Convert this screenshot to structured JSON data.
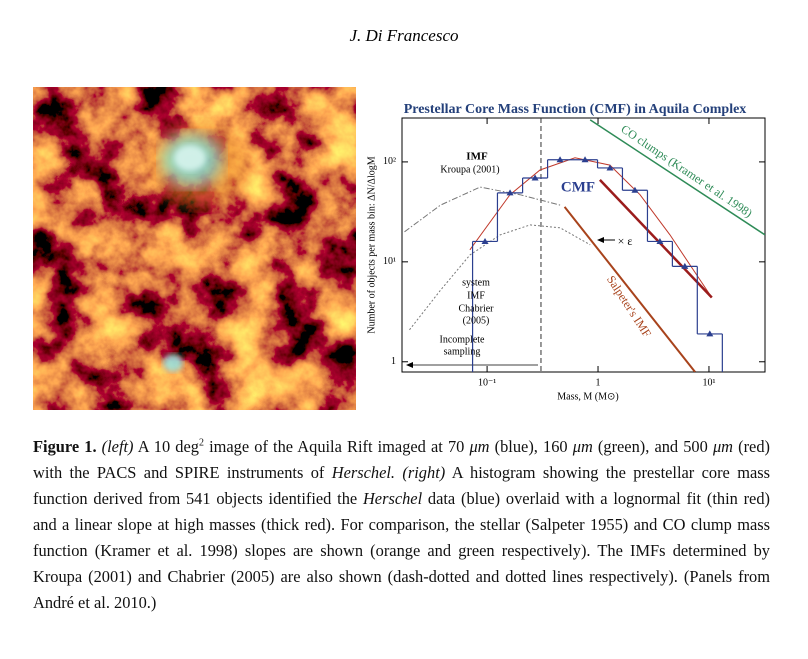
{
  "header": {
    "author": "J. Di Francesco"
  },
  "chart_data": {
    "type": "histogram",
    "title": "Prestellar Core Mass Function (CMF) in Aquila Complex",
    "x_label": "Mass, M (M⊙)",
    "y_label": "Number of objects per mass bin: ΔN/ΔlogM",
    "log_x": true,
    "log_y": true,
    "xlim": [
      0.0171,
      32
    ],
    "ylim": [
      0.79,
      275
    ],
    "xticks": [
      {
        "value": 0.1,
        "label": "10⁻¹"
      },
      1,
      {
        "value": 10,
        "label": "10¹"
      }
    ],
    "yticks": [
      1,
      {
        "value": 10,
        "label": "10¹"
      },
      {
        "value": 100,
        "label": "10²"
      }
    ],
    "bins": [
      0.074,
      0.124,
      0.209,
      0.351,
      0.589,
      0.99,
      1.66,
      2.79,
      4.68,
      7.85,
      13.2
    ],
    "values": [
      16,
      49,
      69,
      105,
      105,
      87,
      52,
      16,
      9,
      1.9
    ],
    "color": "#2b3f8f",
    "lines": [
      {
        "x": [
          0.07,
          0.161,
          0.3,
          0.62,
          1.28,
          2.39,
          4.45,
          8.3,
          10.6
        ],
        "values": [
          13.2,
          47,
          83,
          110,
          93,
          47,
          18.6,
          6.6,
          4.4
        ],
        "color": "#c0392b",
        "width": 1,
        "dash": "solid"
      },
      {
        "x": [
          1.04,
          10.6
        ],
        "values": [
          66,
          4.4
        ],
        "color": "#9b1c1c",
        "width": 2.5,
        "dash": "solid"
      },
      {
        "x": [
          0.5,
          7.5
        ],
        "values": [
          35.5,
          0.79
        ],
        "color": "#a8431c",
        "width": 2,
        "dash": "solid"
      },
      {
        "x": [
          0.85,
          32
        ],
        "values": [
          263,
          18.6
        ],
        "color": "#2e8b57",
        "width": 1.5,
        "dash": "solid"
      },
      {
        "x": [
          0.018,
          0.038,
          0.0865,
          0.198,
          0.455
        ],
        "values": [
          20,
          37,
          56,
          47,
          37
        ],
        "color": "#777777",
        "width": 1,
        "dash": "dashdot"
      },
      {
        "x": [
          0.02,
          0.038,
          0.07,
          0.131,
          0.244,
          0.455,
          0.85
        ],
        "values": [
          2.09,
          5.2,
          11.7,
          18.6,
          23.4,
          21.9,
          14.8
        ],
        "color": "#777777",
        "width": 1,
        "dash": "dot"
      }
    ],
    "completeness_limit": 0.306,
    "annotations": [
      "IMF",
      "Kroupa (2001)",
      "CMF",
      "CO clumps (Kramer et al. 1998)",
      "× ε",
      "Salpeter's IMF",
      "system",
      "IMF",
      "Chabrier",
      "(2005)",
      "Incomplete",
      "sampling"
    ]
  },
  "caption": [
    {
      "text": "Figure 1.",
      "style": "bold"
    },
    {
      "text": " (left)",
      "style": "italic"
    },
    {
      "text": " A 10 deg",
      "style": "normal"
    },
    {
      "text": "2",
      "style": "sup"
    },
    {
      "text": " image of the Aquila Rift imaged at 70 ",
      "style": "normal"
    },
    {
      "text": "μm",
      "style": "italic"
    },
    {
      "text": " (blue), 160 ",
      "style": "normal"
    },
    {
      "text": "μm",
      "style": "italic"
    },
    {
      "text": " (green), and 500 ",
      "style": "normal"
    },
    {
      "text": "μm",
      "style": "italic"
    },
    {
      "text": " (red) with the PACS and SPIRE instruments of ",
      "style": "normal"
    },
    {
      "text": "Herschel.",
      "style": "italic"
    },
    {
      "text": " (right)",
      "style": "italic"
    },
    {
      "text": " A histogram showing the prestellar core mass function derived from 541 objects identified the ",
      "style": "normal"
    },
    {
      "text": "Herschel",
      "style": "italic"
    },
    {
      "text": " data (blue) overlaid with a lognormal fit (thin red) and a linear slope at high masses (thick red). For comparison, the stellar (Salpeter 1955) and CO clump mass function (Kramer et al. 1998) slopes are shown (orange and green respectively). The IMFs determined by Kroupa (2001) and Chabrier (2005) are also shown (dash-dotted and dotted lines respectively). (Panels from André et al. 2010.)",
      "style": "normal"
    }
  ]
}
